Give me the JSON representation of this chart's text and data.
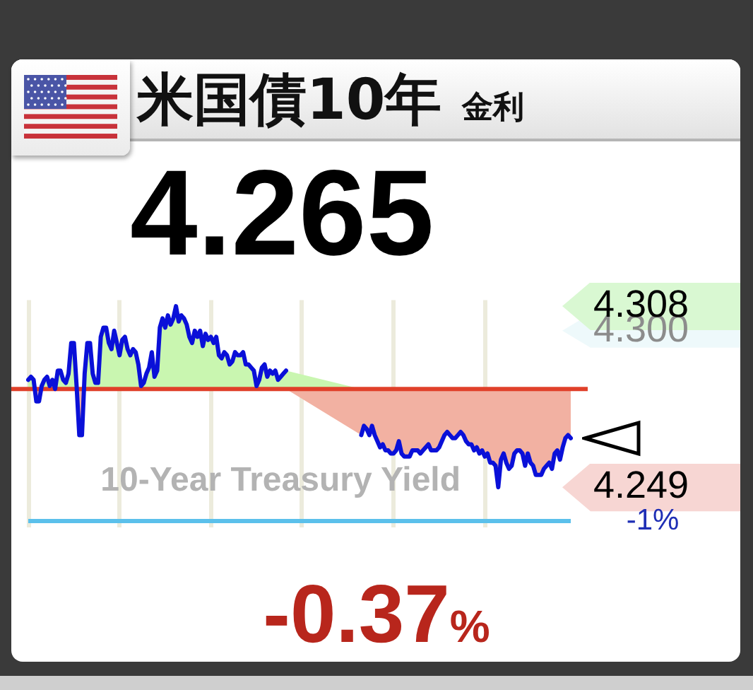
{
  "chart_data": {
    "type": "line",
    "title": "米国債10年",
    "subtitle": "金利",
    "annotations": [
      "4.265",
      "10-Year Treasury Yield",
      "-0.37%",
      "-1%"
    ],
    "categories": [
      null,
      null,
      null,
      null,
      null,
      null,
      null,
      null,
      null,
      null,
      null,
      null,
      null,
      null,
      null,
      null,
      null,
      null,
      null,
      null,
      null,
      null,
      null,
      null,
      null,
      null,
      null,
      null,
      null,
      null,
      null,
      null,
      null,
      null,
      null,
      null,
      null,
      null,
      null,
      null,
      null,
      null,
      null,
      null,
      null,
      null,
      null,
      null,
      null,
      null,
      null,
      null,
      null,
      null,
      null,
      null,
      null,
      null,
      null,
      null,
      null,
      null,
      null,
      null,
      null,
      null,
      null,
      null,
      null,
      null,
      null,
      null,
      null,
      null,
      null,
      null,
      null,
      null,
      null,
      null,
      null,
      null,
      null,
      null,
      null,
      null,
      null,
      null,
      null,
      null,
      null,
      null,
      null,
      null,
      null,
      null,
      null,
      null,
      null,
      null,
      null,
      null,
      null,
      null,
      null,
      null,
      null,
      null,
      null,
      null,
      null,
      null,
      null,
      null,
      null,
      null,
      null,
      null,
      null,
      null,
      null,
      null,
      null,
      null,
      null,
      null,
      null,
      null,
      null,
      null,
      null,
      null,
      null,
      null,
      null,
      null,
      null,
      null,
      null,
      null,
      null,
      null,
      null,
      null,
      null,
      null,
      null,
      null,
      null,
      null,
      null,
      null,
      null,
      null,
      null,
      null,
      null,
      null,
      null,
      null,
      null,
      null,
      null,
      null,
      null,
      null,
      null,
      null,
      null,
      null,
      null,
      null,
      null,
      null,
      null,
      null,
      null,
      null,
      null,
      null,
      null,
      null,
      null,
      null,
      null,
      null,
      null,
      null,
      null,
      null,
      null,
      null,
      null,
      null,
      null,
      null,
      null,
      null,
      null,
      null,
      null,
      null,
      null
    ],
    "series": [
      {
        "color": "#0a10d8",
        "values": [
          4.284,
          4.285,
          4.284,
          4.277,
          4.277,
          4.282,
          4.284,
          4.285,
          4.282,
          4.284,
          4.281,
          4.287,
          4.287,
          4.284,
          4.283,
          4.286,
          4.296,
          4.296,
          4.282,
          4.266,
          4.266,
          4.286,
          4.296,
          4.296,
          4.286,
          4.283,
          4.283,
          4.298,
          4.301,
          4.301,
          4.296,
          4.294,
          4.3,
          4.296,
          4.292,
          4.297,
          4.298,
          4.294,
          4.292,
          4.294,
          4.293,
          4.289,
          4.282,
          4.283,
          4.286,
          4.288,
          4.293,
          4.285,
          4.287,
          4.301,
          4.304,
          4.301,
          4.305,
          4.302,
          4.304,
          4.308,
          4.303,
          4.305,
          4.304,
          4.302,
          4.298,
          4.296,
          4.3,
          4.298,
          4.3,
          4.295,
          4.299,
          4.297,
          4.298,
          4.296,
          4.298,
          4.292,
          4.291,
          4.293,
          4.292,
          4.289,
          4.29,
          4.293,
          4.292,
          4.292,
          4.293,
          4.289,
          4.289,
          4.288,
          4.287,
          4.282,
          4.284,
          4.288,
          4.289,
          4.285,
          4.287,
          4.286,
          4.287,
          4.284,
          4.285,
          4.286,
          4.287,
          null,
          null,
          null,
          null,
          null,
          null,
          null,
          null,
          null,
          null,
          null,
          null,
          null,
          null,
          null,
          null,
          null,
          null,
          null,
          null,
          null,
          null,
          null,
          null,
          null,
          null,
          null,
          4.266,
          4.269,
          4.268,
          4.266,
          4.269,
          4.266,
          4.264,
          4.262,
          4.263,
          4.261,
          4.261,
          4.26,
          4.26,
          4.261,
          4.264,
          4.26,
          4.259,
          4.259,
          4.259,
          4.261,
          4.261,
          4.261,
          4.26,
          4.261,
          4.262,
          4.263,
          4.261,
          4.261,
          4.261,
          4.262,
          4.264,
          4.266,
          4.267,
          4.266,
          4.265,
          4.265,
          4.266,
          4.267,
          4.266,
          4.264,
          4.263,
          4.263,
          4.261,
          4.262,
          4.26,
          4.261,
          4.259,
          4.26,
          4.257,
          4.257,
          4.256,
          4.249,
          4.258,
          4.26,
          4.257,
          4.255,
          4.256,
          4.26,
          4.261,
          4.261,
          4.26,
          4.256,
          4.26,
          4.257,
          4.256,
          4.253,
          4.253,
          4.253,
          4.255,
          4.256,
          4.257,
          4.255,
          4.26,
          4.261,
          4.258,
          4.262,
          4.265,
          4.266,
          4.265
        ],
        "lower": [
          4.281,
          4.281,
          4.281,
          4.277,
          4.277,
          4.281,
          4.281,
          4.281,
          4.281,
          4.281,
          4.281,
          4.281,
          4.281,
          4.281,
          4.281,
          4.281,
          4.281,
          4.281,
          4.281,
          4.266,
          4.266,
          4.281,
          4.281,
          4.281,
          4.281,
          4.281,
          4.281,
          4.281,
          4.281,
          4.281,
          4.281,
          4.281,
          4.281,
          4.281,
          4.281,
          4.281,
          4.281,
          4.281,
          4.281,
          4.281,
          4.281,
          4.281,
          4.281,
          4.281,
          4.281,
          4.281,
          4.281,
          4.281,
          4.281,
          4.281,
          4.281,
          4.281,
          4.281,
          4.281,
          4.281,
          4.281,
          4.281,
          4.281,
          4.281,
          4.281,
          4.281,
          4.281,
          4.281,
          4.281,
          4.281,
          4.281,
          4.281,
          4.281,
          4.281,
          4.281,
          4.281,
          4.281,
          4.281,
          4.281,
          4.281,
          4.281,
          4.281,
          4.281,
          4.281,
          4.281,
          4.281,
          4.281,
          4.281,
          4.281,
          4.281,
          4.281,
          4.281,
          4.281,
          4.281,
          4.281,
          4.281,
          4.281,
          4.281,
          4.281,
          4.281,
          4.281,
          4.281,
          null,
          null,
          null,
          null,
          null,
          null,
          null,
          null,
          null,
          null,
          null,
          null,
          null,
          null,
          null,
          null,
          null,
          null,
          null,
          null,
          null,
          null,
          null,
          null,
          null,
          null,
          null,
          4.266,
          4.269,
          4.268,
          4.266,
          4.269,
          4.266,
          4.264,
          4.262,
          4.263,
          4.261,
          4.261,
          4.26,
          4.26,
          4.261,
          4.264,
          4.26,
          4.259,
          4.259,
          4.259,
          4.261,
          4.261,
          4.261,
          4.26,
          4.261,
          4.262,
          4.263,
          4.261,
          4.261,
          4.261,
          4.262,
          4.264,
          4.266,
          4.267,
          4.266,
          4.265,
          4.265,
          4.266,
          4.267,
          4.266,
          4.264,
          4.263,
          4.263,
          4.261,
          4.262,
          4.26,
          4.261,
          4.259,
          4.26,
          4.257,
          4.257,
          4.256,
          4.249,
          4.258,
          4.26,
          4.257,
          4.255,
          4.256,
          4.26,
          4.261,
          4.261,
          4.26,
          4.256,
          4.26,
          4.257,
          4.256,
          4.253,
          4.253,
          4.253,
          4.255,
          4.256,
          4.257,
          4.255,
          4.26,
          4.261,
          4.258,
          4.262,
          4.265,
          4.266,
          4.265
        ],
        "upper": [
          4.284,
          4.285,
          4.284,
          4.281,
          4.281,
          4.282,
          4.284,
          4.285,
          4.282,
          4.284,
          4.281,
          4.287,
          4.287,
          4.284,
          4.283,
          4.286,
          4.296,
          4.296,
          4.282,
          4.281,
          4.281,
          4.286,
          4.296,
          4.296,
          4.286,
          4.283,
          4.283,
          4.298,
          4.301,
          4.301,
          4.296,
          4.294,
          4.3,
          4.296,
          4.292,
          4.297,
          4.298,
          4.294,
          4.292,
          4.294,
          4.293,
          4.289,
          4.282,
          4.283,
          4.286,
          4.288,
          4.293,
          4.285,
          4.287,
          4.301,
          4.304,
          4.301,
          4.305,
          4.302,
          4.304,
          4.308,
          4.303,
          4.305,
          4.304,
          4.302,
          4.298,
          4.296,
          4.3,
          4.298,
          4.3,
          4.295,
          4.299,
          4.297,
          4.298,
          4.296,
          4.298,
          4.292,
          4.291,
          4.293,
          4.292,
          4.289,
          4.29,
          4.293,
          4.292,
          4.292,
          4.293,
          4.289,
          4.289,
          4.288,
          4.287,
          4.282,
          4.284,
          4.288,
          4.289,
          4.285,
          4.287,
          4.286,
          4.287,
          4.284,
          4.285,
          4.286,
          4.287,
          null,
          null,
          null,
          null,
          null,
          null,
          null,
          null,
          null,
          null,
          null,
          null,
          null,
          null,
          null,
          null,
          null,
          null,
          null,
          null,
          null,
          null,
          null,
          null,
          null,
          null,
          null,
          4.281,
          4.281,
          4.281,
          4.281,
          4.281,
          4.281,
          4.281,
          4.281,
          4.281,
          4.281,
          4.281,
          4.281,
          4.281,
          4.281,
          4.281,
          4.281,
          4.281,
          4.281,
          4.281,
          4.281,
          4.281,
          4.281,
          4.281,
          4.281,
          4.281,
          4.281,
          4.281,
          4.281,
          4.281,
          4.281,
          4.281,
          4.281,
          4.281,
          4.281,
          4.281,
          4.281,
          4.281,
          4.281,
          4.281,
          4.281,
          4.281,
          4.281,
          4.281,
          4.281,
          4.281,
          4.281,
          4.281,
          4.281,
          4.281,
          4.281,
          4.281,
          4.281,
          4.281,
          4.281,
          4.281,
          4.281,
          4.281,
          4.281,
          4.281,
          4.281,
          4.281,
          4.281,
          4.281,
          4.281,
          4.281,
          4.281,
          4.281,
          4.281,
          4.281,
          4.281,
          4.281,
          4.281,
          4.281,
          4.281,
          4.281,
          4.281,
          4.281,
          4.281,
          4.281
        ]
      }
    ],
    "ylim": [
      4.236,
      4.31
    ],
    "yticks": [
      4.249,
      {
        "value": 4.3,
        "label": "4.300"
      },
      4.308
    ],
    "tick_labels": "y",
    "grid": "x",
    "ref_lines": [
      {
        "axis": "y",
        "value": 4.281,
        "color": "#e0402a"
      },
      {
        "axis": "y",
        "value": 4.238,
        "color": "#5bc0eb"
      }
    ]
  }
}
